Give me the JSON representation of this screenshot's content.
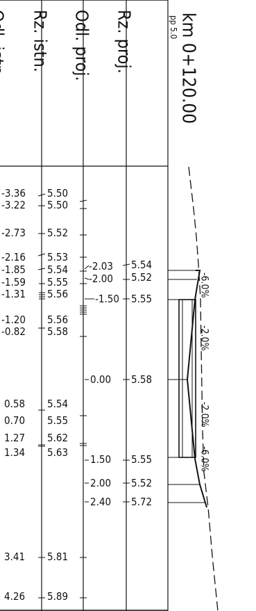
{
  "station": {
    "km_label": "km 0+120.00",
    "pp_label": "pp 5.0"
  },
  "headers": {
    "odl_istn": "Odl. istn.",
    "rz_istn": "Rz. istn.",
    "odl_proj": "Odl. proj.",
    "rz_proj": "Rz. proj."
  },
  "existing_points": [
    {
      "offset": "-3.36",
      "elevation": "5.50"
    },
    {
      "offset": "-3.22",
      "elevation": "5.50"
    },
    {
      "offset": "-2.73",
      "elevation": "5.52"
    },
    {
      "offset": "-2.16",
      "elevation": "5.53"
    },
    {
      "offset": "-1.85",
      "elevation": "5.54"
    },
    {
      "offset": "-1.59",
      "elevation": "5.55"
    },
    {
      "offset": "-1.31",
      "elevation": "5.56"
    },
    {
      "offset": "-1.20",
      "elevation": "5.56"
    },
    {
      "offset": "-0.82",
      "elevation": "5.58"
    },
    {
      "offset": "0.58",
      "elevation": "5.54"
    },
    {
      "offset": "0.70",
      "elevation": "5.55"
    },
    {
      "offset": "1.27",
      "elevation": "5.62"
    },
    {
      "offset": "1.34",
      "elevation": "5.63"
    },
    {
      "offset": "3.41",
      "elevation": "5.81"
    },
    {
      "offset": "4.26",
      "elevation": "5.89"
    }
  ],
  "design_points": [
    {
      "offset": "-2.03",
      "elevation": "5.54"
    },
    {
      "offset": "-2.00",
      "elevation": "5.52"
    },
    {
      "offset": "-1.50",
      "elevation": "5.55"
    },
    {
      "offset": "0.00",
      "elevation": "5.58"
    },
    {
      "offset": "1.50",
      "elevation": "5.55"
    },
    {
      "offset": "2.00",
      "elevation": "5.52"
    },
    {
      "offset": "2.40",
      "elevation": "5.72"
    }
  ],
  "slopes": [
    "-6.0%",
    "-2.0%",
    "-2.0%",
    "-6.0%"
  ]
}
